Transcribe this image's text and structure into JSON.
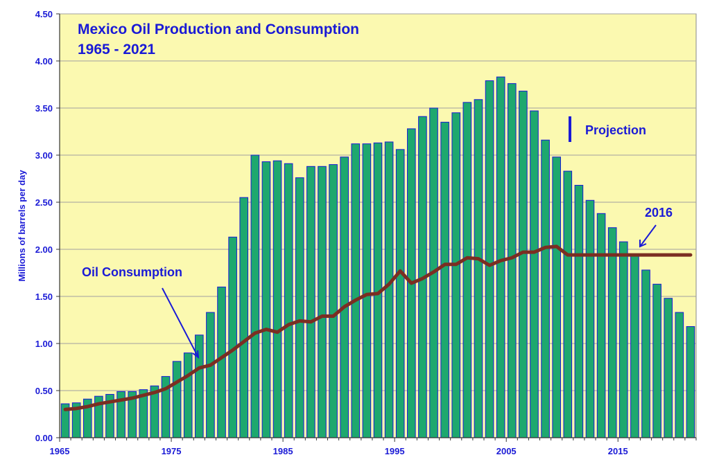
{
  "chart_data": {
    "type": "bar",
    "title_lines": [
      "Mexico Oil Production and Consumption",
      "1965 - 2021"
    ],
    "xlabel": "",
    "ylabel": "Millions of barrels per day",
    "ylim": [
      0,
      4.5
    ],
    "grid": true,
    "x_tick_labels": [
      "1965",
      "1975",
      "1985",
      "1995",
      "2005",
      "2015"
    ],
    "y_tick_labels": [
      "0.00",
      "0.50",
      "1.00",
      "1.50",
      "2.00",
      "2.50",
      "3.00",
      "3.50",
      "4.00",
      "4.50"
    ],
    "y_ticks": [
      0,
      0.5,
      1,
      1.5,
      2,
      2.5,
      3,
      3.5,
      4,
      4.5
    ],
    "years": [
      1965,
      1966,
      1967,
      1968,
      1969,
      1970,
      1971,
      1972,
      1973,
      1974,
      1975,
      1976,
      1977,
      1978,
      1979,
      1980,
      1981,
      1982,
      1983,
      1984,
      1985,
      1986,
      1987,
      1988,
      1989,
      1990,
      1991,
      1992,
      1993,
      1994,
      1995,
      1996,
      1997,
      1998,
      1999,
      2000,
      2001,
      2002,
      2003,
      2004,
      2005,
      2006,
      2007,
      2008,
      2009,
      2010,
      2011,
      2012,
      2013,
      2014,
      2015,
      2016,
      2017,
      2018,
      2019,
      2020,
      2021
    ],
    "series": [
      {
        "name": "Oil Production",
        "kind": "bar",
        "color": "#1ea86e",
        "edge_color": "#1a1ad6",
        "values": [
          0.36,
          0.37,
          0.41,
          0.44,
          0.46,
          0.49,
          0.49,
          0.51,
          0.55,
          0.65,
          0.81,
          0.9,
          1.09,
          1.33,
          1.6,
          2.13,
          2.55,
          3.0,
          2.93,
          2.94,
          2.91,
          2.76,
          2.88,
          2.88,
          2.9,
          2.98,
          3.12,
          3.12,
          3.13,
          3.14,
          3.06,
          3.28,
          3.41,
          3.5,
          3.35,
          3.45,
          3.56,
          3.59,
          3.79,
          3.83,
          3.76,
          3.68,
          3.47,
          3.16,
          2.98,
          2.83,
          2.68,
          2.52,
          2.38,
          2.23,
          2.08,
          1.93,
          1.78,
          1.63,
          1.48,
          1.33,
          1.18
        ]
      },
      {
        "name": "Oil Consumption",
        "kind": "line",
        "color": "#7b2e22",
        "values": [
          0.3,
          0.31,
          0.33,
          0.36,
          0.38,
          0.4,
          0.42,
          0.45,
          0.48,
          0.52,
          0.59,
          0.66,
          0.74,
          0.77,
          0.85,
          0.93,
          1.02,
          1.11,
          1.15,
          1.12,
          1.2,
          1.24,
          1.23,
          1.29,
          1.29,
          1.39,
          1.46,
          1.52,
          1.53,
          1.63,
          1.77,
          1.64,
          1.69,
          1.76,
          1.84,
          1.84,
          1.91,
          1.9,
          1.83,
          1.88,
          1.91,
          1.97,
          1.97,
          2.02,
          2.03,
          1.94,
          1.94,
          1.94,
          1.94,
          1.94,
          1.94,
          1.94,
          1.94,
          1.94,
          1.94,
          1.94,
          1.94
        ]
      }
    ],
    "annotations": {
      "consumption_label": "Oil Consumption",
      "projection_label": "Projection",
      "year_label": "2016"
    },
    "colors": {
      "plot_background": "#fbf9b0",
      "grid": "#a0a0a0",
      "text": "#1a1ad6",
      "bar": "#1ea86e",
      "line": "#7b2e22"
    }
  }
}
